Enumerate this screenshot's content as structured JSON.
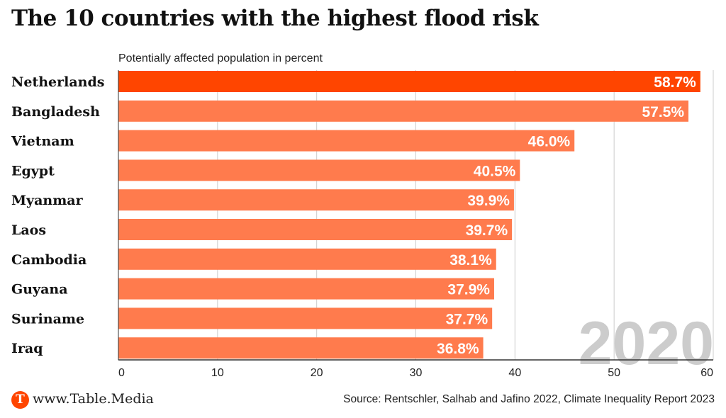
{
  "chart_data": {
    "type": "bar",
    "orientation": "horizontal",
    "title": "The 10 countries with the highest flood risk",
    "subtitle": "Potentially affected population in percent",
    "categories": [
      "Netherlands",
      "Bangladesh",
      "Vietnam",
      "Egypt",
      "Myanmar",
      "Laos",
      "Cambodia",
      "Guyana",
      "Suriname",
      "Iraq"
    ],
    "values": [
      58.7,
      57.5,
      46.0,
      40.5,
      39.9,
      39.7,
      38.1,
      37.9,
      37.7,
      36.8
    ],
    "value_labels": [
      "58.7%",
      "57.5%",
      "46.0%",
      "40.5%",
      "39.9%",
      "39.7%",
      "38.1%",
      "37.9%",
      "37.7%",
      "36.8%"
    ],
    "highlight_index": 0,
    "colors": {
      "highlight": "#ff4500",
      "bar": "#ff7b4d",
      "grid": "#cccccc",
      "watermark": "#cccccc"
    },
    "xlim": [
      0,
      60
    ],
    "xticks": [
      0,
      10,
      20,
      30,
      40,
      50,
      60
    ],
    "xtick_labels": [
      "0",
      "10",
      "20",
      "30",
      "40",
      "50",
      "60"
    ],
    "xlabel": "",
    "ylabel": "",
    "grid": true,
    "watermark": "2020",
    "legend": "none"
  },
  "footer": {
    "logo_letter": "T",
    "site": "www.Table.Media",
    "source": "Source: Rentschler, Salhab and Jafino 2022, Climate Inequality Report 2023"
  }
}
